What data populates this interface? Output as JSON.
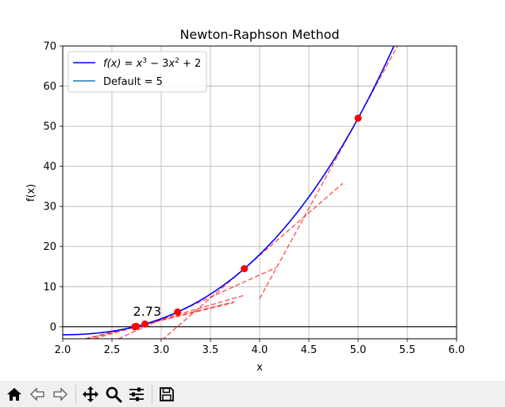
{
  "chart_data": {
    "type": "line",
    "title": "Newton-Raphson Method",
    "xlabel": "x",
    "ylabel": "f(x)",
    "xlim": [
      2.0,
      6.0
    ],
    "ylim": [
      -3,
      70
    ],
    "xticks": [
      "2.0",
      "2.5",
      "3.0",
      "3.5",
      "4.0",
      "4.5",
      "5.0",
      "5.5",
      "6.0"
    ],
    "yticks": [
      "0",
      "10",
      "20",
      "30",
      "40",
      "50",
      "60",
      "70"
    ],
    "grid": true,
    "legend_position": "upper-left",
    "legend": [
      {
        "label_base": "f(x) = x",
        "label_full": "f(x) = x³ − 3x² + 2",
        "color": "#0000ff"
      },
      {
        "label": "Default = 5",
        "color": "#1f77b4"
      }
    ],
    "function_coefficients": [
      1,
      -3,
      0,
      2
    ],
    "curve_color": "#0000ff",
    "tangent_color": "#ff0000",
    "point_color": "#ff0000",
    "iterations_x": [
      5.0,
      3.8444,
      3.1667,
      2.8352,
      2.7474,
      2.7321
    ],
    "tangent_x_ranges": [
      [
        4.0,
        6.0
      ],
      [
        2.844,
        4.844
      ],
      [
        2.167,
        4.167
      ],
      [
        1.835,
        3.835
      ],
      [
        1.747,
        3.747
      ],
      [
        1.732,
        3.732
      ]
    ],
    "root_label": "2.73",
    "root_value": 2.73,
    "horizontal_line_y": 0
  },
  "toolbar": {
    "buttons": [
      {
        "name": "home-button",
        "icon": "home-icon"
      },
      {
        "name": "back-button",
        "icon": "arrow-left-icon"
      },
      {
        "name": "forward-button",
        "icon": "arrow-right-icon"
      },
      {
        "name": "pan-button",
        "icon": "move-icon"
      },
      {
        "name": "zoom-button",
        "icon": "magnifier-icon"
      },
      {
        "name": "configure-button",
        "icon": "sliders-icon"
      },
      {
        "name": "save-button",
        "icon": "floppy-disk-icon"
      }
    ]
  }
}
